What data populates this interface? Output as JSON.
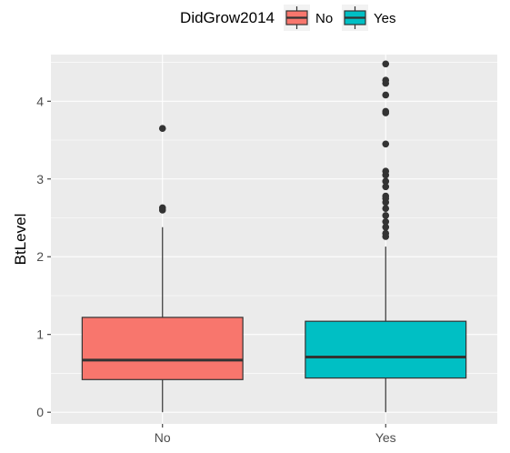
{
  "chart_data": {
    "type": "box",
    "ylabel": "BtLevel",
    "xlabel": "",
    "categories": [
      "No",
      "Yes"
    ],
    "ylim": [
      -0.15,
      4.6
    ],
    "yticks": [
      0,
      1,
      2,
      3,
      4
    ],
    "grid": true,
    "legend": {
      "title": "DidGrow2014",
      "position": "top",
      "entries": [
        {
          "label": "No",
          "color": "#F8766D"
        },
        {
          "label": "Yes",
          "color": "#00BFC4"
        }
      ]
    },
    "boxes": [
      {
        "category": "No",
        "color": "#F8766D",
        "min": 0.0,
        "q1": 0.42,
        "median": 0.67,
        "q3": 1.22,
        "max": 2.38,
        "outliers": [
          2.6,
          2.63,
          3.65
        ]
      },
      {
        "category": "Yes",
        "color": "#00BFC4",
        "min": 0.0,
        "q1": 0.44,
        "median": 0.71,
        "q3": 1.17,
        "max": 2.13,
        "outliers": [
          2.26,
          2.3,
          2.38,
          2.45,
          2.53,
          2.62,
          2.7,
          2.75,
          2.78,
          2.9,
          2.97,
          3.05,
          3.1,
          3.45,
          3.85,
          3.87,
          4.08,
          4.23,
          4.27,
          4.48
        ]
      }
    ]
  }
}
